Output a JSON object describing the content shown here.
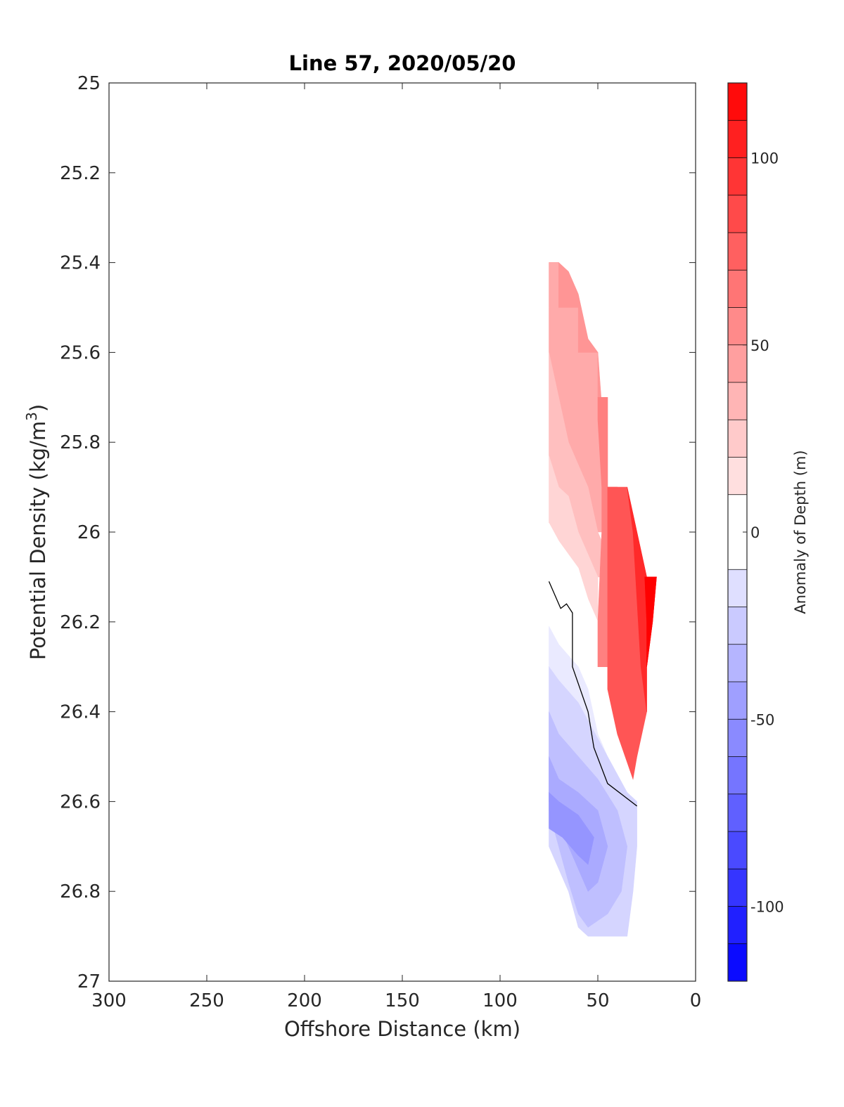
{
  "chart_data": {
    "type": "heatmap",
    "subtype": "filled-contour",
    "title": "Line 57, 2020/05/20",
    "xlabel": "Offshore Distance (km)",
    "ylabel": "Potential Density (kg/m",
    "ylabel_superscript": "3",
    "ylabel_suffix": ")",
    "xlim": [
      300,
      0
    ],
    "x_reversed": true,
    "ylim": [
      25,
      27
    ],
    "y_reversed": true,
    "x_ticks": [
      "300",
      "250",
      "200",
      "150",
      "100",
      "50",
      "0"
    ],
    "y_ticks": [
      "25",
      "25.2",
      "25.4",
      "25.6",
      "25.8",
      "26",
      "26.2",
      "26.4",
      "26.6",
      "26.8",
      "27"
    ],
    "grid": false,
    "legend": "none",
    "colorbar": {
      "label": "Anomaly of Depth (m)",
      "range": [
        -120,
        120
      ],
      "levels": [
        -120,
        -110,
        -100,
        -90,
        -80,
        -70,
        -60,
        -50,
        -40,
        -30,
        -20,
        -10,
        10,
        20,
        30,
        40,
        50,
        60,
        70,
        80,
        90,
        100,
        110,
        120
      ],
      "tick_labels": [
        "100",
        "50",
        "0",
        "-50",
        "-100"
      ],
      "colormap": "blue-white-red"
    },
    "contour_line_value": 0,
    "data_x_range_km": [
      20,
      75
    ],
    "data_y_range": [
      25.4,
      26.9
    ],
    "regions": [
      {
        "value": 40,
        "points": [
          [
            75,
            25.4
          ],
          [
            70,
            25.4
          ],
          [
            70,
            25.5
          ],
          [
            65,
            25.5
          ],
          [
            60,
            25.5
          ],
          [
            60,
            25.6
          ],
          [
            55,
            25.6
          ],
          [
            50,
            25.6
          ],
          [
            50,
            25.7
          ],
          [
            45,
            25.7
          ],
          [
            45,
            25.8
          ],
          [
            45,
            25.9
          ],
          [
            40,
            25.9
          ],
          [
            40,
            26.0
          ],
          [
            50,
            26.0
          ],
          [
            55,
            25.9
          ],
          [
            60,
            25.85
          ],
          [
            65,
            25.8
          ],
          [
            70,
            25.7
          ],
          [
            75,
            25.6
          ]
        ]
      },
      {
        "value": 50,
        "points": [
          [
            75,
            25.4
          ],
          [
            70,
            25.4
          ],
          [
            70,
            25.5
          ],
          [
            65,
            25.5
          ],
          [
            60,
            25.5
          ],
          [
            60,
            25.6
          ],
          [
            55,
            25.6
          ],
          [
            50,
            25.6
          ],
          [
            50,
            25.7
          ],
          [
            48,
            25.72
          ],
          [
            50,
            25.6
          ],
          [
            55,
            25.57
          ],
          [
            60,
            25.47
          ],
          [
            65,
            25.42
          ],
          [
            70,
            25.4
          ]
        ]
      },
      {
        "value": 30,
        "points": [
          [
            75,
            25.6
          ],
          [
            70,
            25.7
          ],
          [
            65,
            25.8
          ],
          [
            60,
            25.85
          ],
          [
            55,
            25.9
          ],
          [
            50,
            26.0
          ],
          [
            45,
            26.05
          ],
          [
            45,
            26.1
          ],
          [
            50,
            26.1
          ],
          [
            55,
            26.05
          ],
          [
            60,
            26.0
          ],
          [
            65,
            25.92
          ],
          [
            70,
            25.9
          ],
          [
            75,
            25.83
          ]
        ]
      },
      {
        "value": 20,
        "points": [
          [
            75,
            25.83
          ],
          [
            70,
            25.9
          ],
          [
            65,
            25.92
          ],
          [
            60,
            26.0
          ],
          [
            55,
            26.05
          ],
          [
            50,
            26.1
          ],
          [
            50,
            26.2
          ],
          [
            55,
            26.15
          ],
          [
            60,
            26.08
          ],
          [
            65,
            26.05
          ],
          [
            70,
            26.02
          ],
          [
            75,
            25.98
          ]
        ]
      },
      {
        "value": 0,
        "points": [
          [
            75,
            25.98
          ],
          [
            70,
            26.02
          ],
          [
            65,
            26.05
          ],
          [
            60,
            26.08
          ],
          [
            55,
            26.15
          ],
          [
            50,
            26.2
          ],
          [
            50,
            26.3
          ],
          [
            45,
            26.4
          ],
          [
            40,
            26.5
          ],
          [
            33,
            26.55
          ],
          [
            35,
            26.58
          ],
          [
            40,
            26.55
          ],
          [
            50,
            26.45
          ],
          [
            55,
            26.35
          ],
          [
            60,
            26.3
          ],
          [
            70,
            26.25
          ],
          [
            75,
            26.21
          ]
        ]
      },
      {
        "value": -10,
        "points": [
          [
            75,
            26.21
          ],
          [
            70,
            26.25
          ],
          [
            60,
            26.3
          ],
          [
            55,
            26.35
          ],
          [
            50,
            26.45
          ],
          [
            40,
            26.55
          ],
          [
            35,
            26.58
          ],
          [
            45,
            26.5
          ],
          [
            55,
            26.42
          ],
          [
            60,
            26.38
          ],
          [
            70,
            26.33
          ],
          [
            75,
            26.3
          ]
        ]
      },
      {
        "value": -20,
        "points": [
          [
            75,
            26.3
          ],
          [
            70,
            26.33
          ],
          [
            60,
            26.38
          ],
          [
            55,
            26.42
          ],
          [
            45,
            26.5
          ],
          [
            35,
            26.58
          ],
          [
            30,
            26.6
          ],
          [
            30,
            26.7
          ],
          [
            32,
            26.8
          ],
          [
            35,
            26.9
          ],
          [
            45,
            26.9
          ],
          [
            55,
            26.9
          ],
          [
            60,
            26.88
          ],
          [
            65,
            26.8
          ],
          [
            70,
            26.75
          ],
          [
            75,
            26.7
          ]
        ]
      },
      {
        "value": -30,
        "points": [
          [
            75,
            26.4
          ],
          [
            70,
            26.45
          ],
          [
            60,
            26.5
          ],
          [
            50,
            26.55
          ],
          [
            40,
            26.62
          ],
          [
            35,
            26.7
          ],
          [
            38,
            26.8
          ],
          [
            45,
            26.85
          ],
          [
            55,
            26.88
          ],
          [
            60,
            26.85
          ],
          [
            65,
            26.78
          ],
          [
            70,
            26.7
          ],
          [
            75,
            26.62
          ]
        ]
      },
      {
        "value": -40,
        "points": [
          [
            75,
            26.5
          ],
          [
            70,
            26.55
          ],
          [
            60,
            26.58
          ],
          [
            50,
            26.62
          ],
          [
            45,
            26.7
          ],
          [
            50,
            26.78
          ],
          [
            55,
            26.8
          ],
          [
            60,
            26.75
          ],
          [
            65,
            26.7
          ],
          [
            70,
            26.65
          ],
          [
            75,
            26.6
          ]
        ]
      },
      {
        "value": -50,
        "points": [
          [
            75,
            26.58
          ],
          [
            70,
            26.6
          ],
          [
            60,
            26.63
          ],
          [
            52,
            26.68
          ],
          [
            55,
            26.74
          ],
          [
            60,
            26.72
          ],
          [
            68,
            26.68
          ],
          [
            75,
            26.66
          ]
        ]
      },
      {
        "value": 60,
        "points": [
          [
            50,
            25.7
          ],
          [
            45,
            25.7
          ],
          [
            45,
            25.8
          ],
          [
            45,
            25.9
          ],
          [
            40,
            25.9
          ],
          [
            40,
            26.0
          ],
          [
            45,
            26.05
          ],
          [
            45,
            26.1
          ],
          [
            45,
            26.3
          ],
          [
            50,
            26.3
          ],
          [
            50,
            26.2
          ],
          [
            48,
            26.0
          ],
          [
            48,
            25.9
          ],
          [
            50,
            25.75
          ]
        ]
      },
      {
        "value": 80,
        "points": [
          [
            45,
            25.9
          ],
          [
            40,
            25.9
          ],
          [
            35,
            25.9
          ],
          [
            30,
            26.0
          ],
          [
            25,
            26.1
          ],
          [
            20,
            26.1
          ],
          [
            22,
            26.2
          ],
          [
            25,
            26.3
          ],
          [
            25,
            26.4
          ],
          [
            30,
            26.5
          ],
          [
            32,
            26.55
          ],
          [
            40,
            26.45
          ],
          [
            45,
            26.35
          ],
          [
            45,
            26.1
          ]
        ]
      },
      {
        "value": 100,
        "points": [
          [
            35,
            25.9
          ],
          [
            30,
            26.0
          ],
          [
            25,
            26.1
          ],
          [
            20,
            26.1
          ],
          [
            22,
            26.2
          ],
          [
            25,
            26.3
          ],
          [
            25,
            26.4
          ],
          [
            28,
            26.3
          ],
          [
            30,
            26.15
          ],
          [
            32,
            26.0
          ]
        ]
      },
      {
        "value": 120,
        "points": [
          [
            25,
            26.1
          ],
          [
            20,
            26.1
          ],
          [
            22,
            26.2
          ],
          [
            25,
            26.3
          ],
          [
            25,
            26.2
          ],
          [
            26,
            26.1
          ]
        ]
      }
    ],
    "zero_contour": [
      [
        75,
        26.11
      ],
      [
        69,
        26.17
      ],
      [
        66,
        26.16
      ],
      [
        63,
        26.18
      ],
      [
        63,
        26.3
      ],
      [
        55,
        26.4
      ],
      [
        52,
        26.48
      ],
      [
        45,
        26.56
      ],
      [
        30,
        26.61
      ]
    ]
  }
}
